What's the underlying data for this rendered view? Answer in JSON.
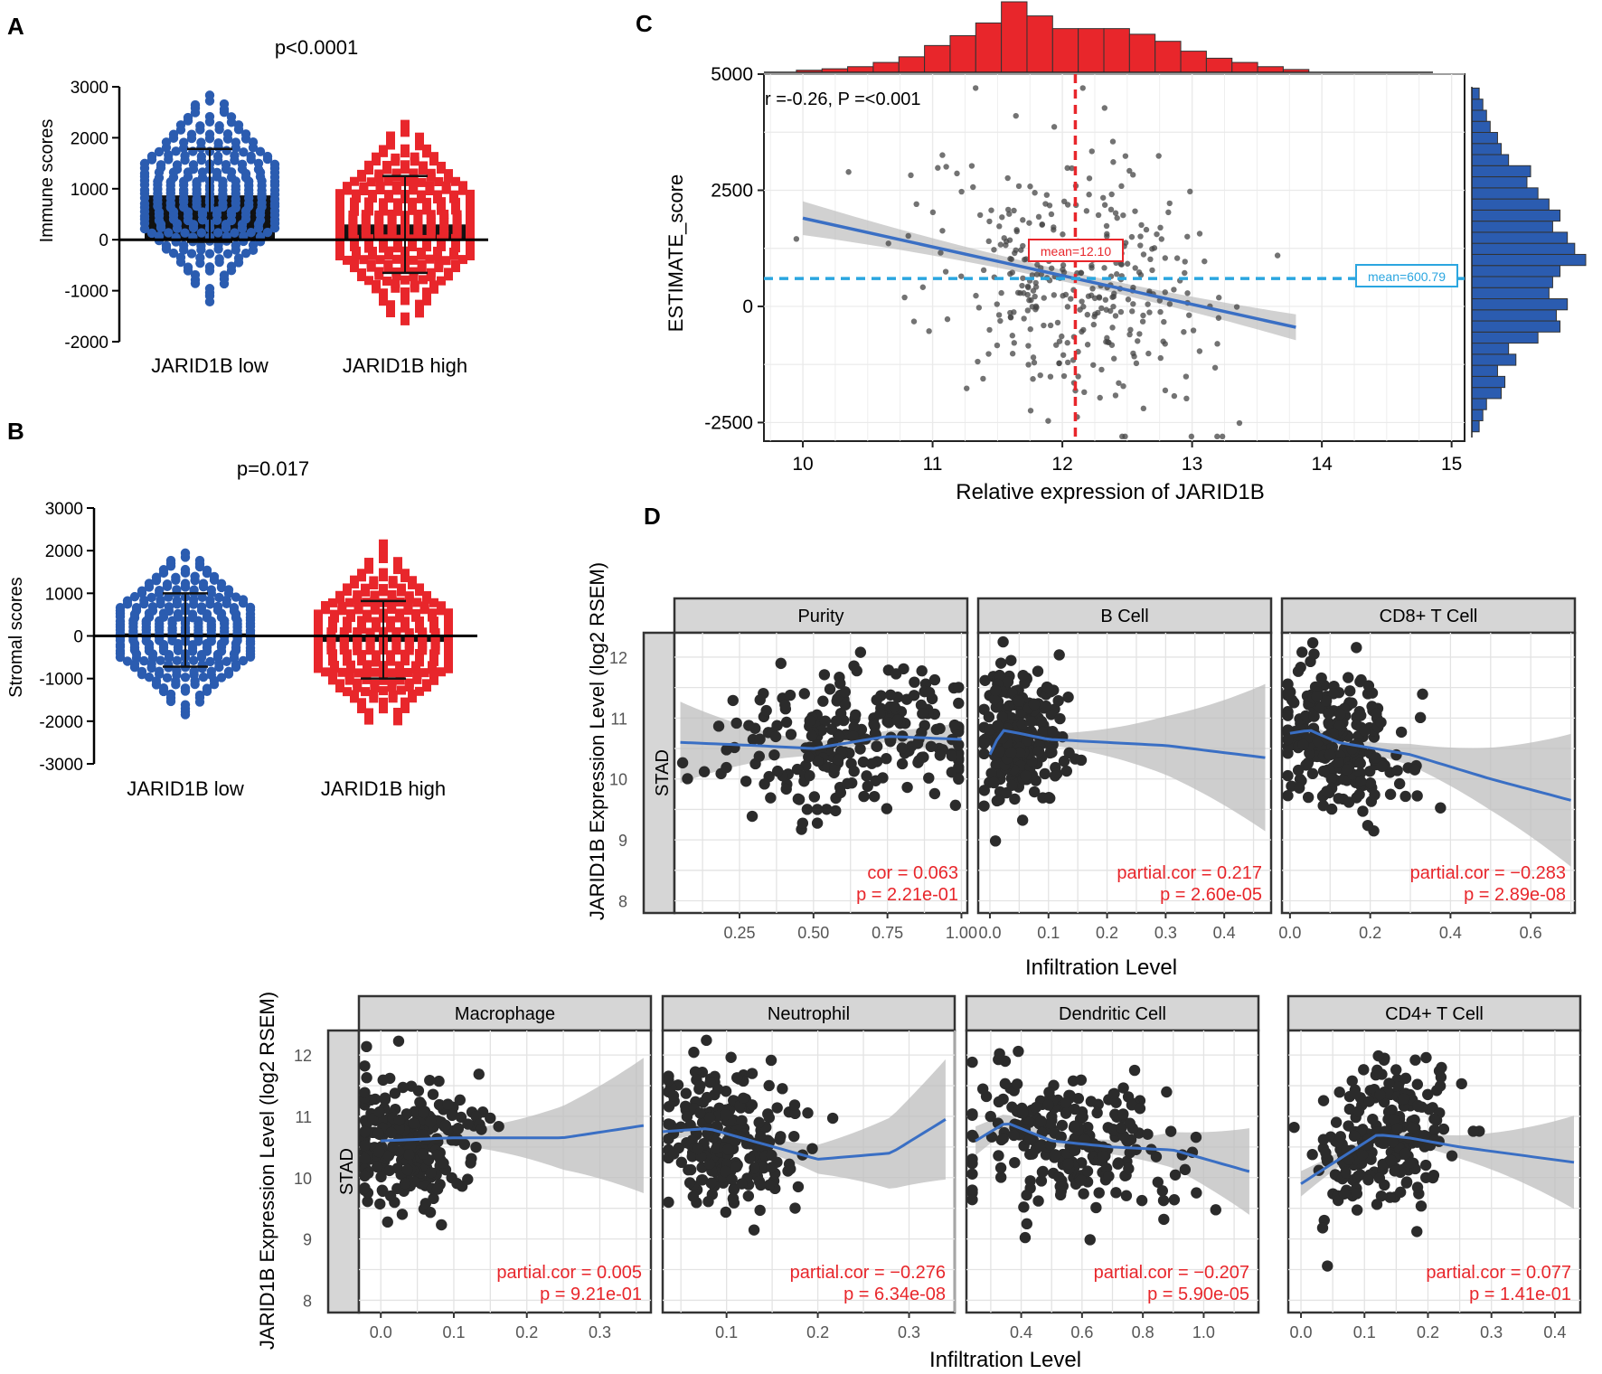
{
  "colors": {
    "blue": "#2b5cb0",
    "red": "#e8262b",
    "dark": "#333333",
    "panel_strip": "#d6d6d6",
    "grid": "#e3e3e3",
    "fit_line": "#3a6fc4",
    "ribbon": "#bdbdbd",
    "mean_v": "#e8262b",
    "mean_h": "#2ba6e0",
    "annot": "#e8262b"
  },
  "chart_data": [
    {
      "id": "A",
      "type": "scatter",
      "panel_label": "A",
      "title": "p<0.0001",
      "ylabel": "Immune scores",
      "xlabel": "",
      "ylim": [
        -2000,
        3000
      ],
      "yticks": [
        -2000,
        -1000,
        0,
        1000,
        2000,
        3000
      ],
      "categories": [
        "JARID1B low",
        "JARID1B high"
      ],
      "bar_means": [
        870,
        300
      ],
      "sd_upper": [
        1780,
        1250
      ],
      "sd_lower": [
        -40,
        -650
      ],
      "range_low": [
        -1200,
        -1600
      ],
      "range_high": [
        2820,
        2260
      ]
    },
    {
      "id": "B",
      "type": "scatter",
      "panel_label": "B",
      "title": "p=0.017",
      "ylabel": "Stromal scores",
      "xlabel": "",
      "ylim": [
        -3000,
        3000
      ],
      "yticks": [
        -3000,
        -2000,
        -1000,
        0,
        1000,
        2000,
        3000
      ],
      "categories": [
        "JARID1B low",
        "JARID1B high"
      ],
      "bar_means": [
        60,
        -140
      ],
      "sd_upper": [
        1000,
        820
      ],
      "sd_lower": [
        -720,
        -1000
      ],
      "range_low": [
        -1850,
        -1980
      ],
      "range_high": [
        1940,
        2160
      ]
    },
    {
      "id": "C",
      "type": "scatter",
      "panel_label": "C",
      "xlabel": "Relative expression of JARID1B",
      "ylabel": "ESTIMATE_score",
      "xlim": [
        9.7,
        15.1
      ],
      "ylim": [
        -2900,
        5000
      ],
      "xticks": [
        10,
        11,
        12,
        13,
        14,
        15
      ],
      "yticks": [
        -2500,
        0,
        2500,
        5000
      ],
      "annotation": "r =-0.26, P =<0.001",
      "mean_x": 12.1,
      "mean_x_label": "mean=12.10",
      "mean_y": 600.79,
      "mean_y_label": "mean=600.79",
      "fit_line": {
        "x": [
          10,
          13.8
        ],
        "y": [
          1900,
          -450
        ]
      },
      "top_histogram": [
        3,
        5,
        8,
        14,
        22,
        38,
        52,
        70,
        100,
        80,
        62,
        62,
        62,
        54,
        44,
        30,
        20,
        14,
        8,
        4
      ],
      "right_histogram": [
        2,
        3,
        4,
        8,
        9,
        7,
        12,
        10,
        18,
        24,
        23,
        26,
        21,
        22,
        24,
        31,
        28,
        26,
        22,
        24,
        21,
        18,
        15,
        16,
        10,
        8,
        7,
        5,
        4,
        3,
        2
      ]
    },
    {
      "id": "D",
      "type": "scatter",
      "panel_label": "D",
      "cancer": "STAD",
      "ylabel": "JARID1B Expression Level (log2 RSEM)",
      "xlabel": "Infiltration Level",
      "ylim": [
        7.8,
        12.4
      ],
      "yticks": [
        8,
        9,
        10,
        11,
        12
      ],
      "panels": [
        {
          "title": "Purity",
          "xlim": [
            0.03,
            1.02
          ],
          "xticks": [
            0.25,
            0.5,
            0.75,
            1.0
          ],
          "xtick_labels": [
            "0.25",
            "0.50",
            "0.75",
            "1.00"
          ],
          "cor_label": "cor = 0.063",
          "p_label": "p = 2.21e-01",
          "x_center": 0.65,
          "x_spread": 0.22,
          "trend": [
            [
              0.05,
              10.6
            ],
            [
              0.3,
              10.55
            ],
            [
              0.5,
              10.5
            ],
            [
              0.75,
              10.7
            ],
            [
              1.0,
              10.65
            ]
          ]
        },
        {
          "title": "B Cell",
          "xlim": [
            -0.02,
            0.48
          ],
          "xticks": [
            0.0,
            0.1,
            0.2,
            0.3,
            0.4
          ],
          "xtick_labels": [
            "0.0",
            "0.1",
            "0.2",
            "0.3",
            "0.4"
          ],
          "cor_label": "partial.cor = 0.217",
          "p_label": "p = 2.60e-05",
          "x_center": 0.05,
          "x_spread": 0.035,
          "trend": [
            [
              0.0,
              10.4
            ],
            [
              0.02,
              10.8
            ],
            [
              0.05,
              10.75
            ],
            [
              0.1,
              10.65
            ],
            [
              0.3,
              10.55
            ],
            [
              0.47,
              10.35
            ]
          ]
        },
        {
          "title": "CD8+ T Cell",
          "xlim": [
            -0.02,
            0.71
          ],
          "xticks": [
            0.0,
            0.2,
            0.4,
            0.6
          ],
          "xtick_labels": [
            "0.0",
            "0.2",
            "0.4",
            "0.6"
          ],
          "cor_label": "partial.cor = −0.283",
          "p_label": "p = 2.89e-08",
          "x_center": 0.12,
          "x_spread": 0.09,
          "trend": [
            [
              0.0,
              10.75
            ],
            [
              0.05,
              10.8
            ],
            [
              0.12,
              10.6
            ],
            [
              0.3,
              10.4
            ],
            [
              0.5,
              10.0
            ],
            [
              0.7,
              9.65
            ]
          ]
        },
        {
          "title": "Macrophage",
          "xlim": [
            -0.03,
            0.37
          ],
          "xticks": [
            0.0,
            0.1,
            0.2,
            0.3
          ],
          "xtick_labels": [
            "0.0",
            "0.1",
            "0.2",
            "0.3"
          ],
          "cor_label": "partial.cor = 0.005",
          "p_label": "p = 9.21e-01",
          "x_center": 0.04,
          "x_spread": 0.045,
          "trend": [
            [
              0.0,
              10.6
            ],
            [
              0.1,
              10.65
            ],
            [
              0.25,
              10.65
            ],
            [
              0.36,
              10.85
            ]
          ]
        },
        {
          "title": "Neutrophil",
          "xlim": [
            0.03,
            0.35
          ],
          "xticks": [
            0.1,
            0.2,
            0.3
          ],
          "xtick_labels": [
            "0.1",
            "0.2",
            "0.3"
          ],
          "cor_label": "partial.cor = −0.276",
          "p_label": "p = 6.34e-08",
          "x_center": 0.1,
          "x_spread": 0.035,
          "trend": [
            [
              0.03,
              10.75
            ],
            [
              0.08,
              10.8
            ],
            [
              0.14,
              10.55
            ],
            [
              0.2,
              10.3
            ],
            [
              0.28,
              10.4
            ],
            [
              0.34,
              10.95
            ]
          ]
        },
        {
          "title": "Dendritic Cell",
          "xlim": [
            0.22,
            1.18
          ],
          "xticks": [
            0.4,
            0.6,
            0.8,
            1.0
          ],
          "xtick_labels": [
            "0.4",
            "0.6",
            "0.8",
            "1.0"
          ],
          "cor_label": "partial.cor = −0.207",
          "p_label": "p = 5.90e-05",
          "x_center": 0.55,
          "x_spread": 0.17,
          "trend": [
            [
              0.25,
              10.6
            ],
            [
              0.35,
              10.9
            ],
            [
              0.5,
              10.6
            ],
            [
              0.7,
              10.5
            ],
            [
              0.9,
              10.45
            ],
            [
              1.15,
              10.1
            ]
          ]
        },
        {
          "title": "CD4+ T Cell",
          "xlim": [
            -0.02,
            0.44
          ],
          "xticks": [
            0.0,
            0.1,
            0.2,
            0.3,
            0.4
          ],
          "xtick_labels": [
            "0.0",
            "0.1",
            "0.2",
            "0.3",
            "0.4"
          ],
          "cor_label": "partial.cor = 0.077",
          "p_label": "p = 1.41e-01",
          "x_center": 0.13,
          "x_spread": 0.055,
          "trend": [
            [
              0.0,
              9.9
            ],
            [
              0.06,
              10.3
            ],
            [
              0.12,
              10.7
            ],
            [
              0.17,
              10.65
            ],
            [
              0.25,
              10.5
            ],
            [
              0.43,
              10.25
            ]
          ]
        }
      ]
    }
  ]
}
